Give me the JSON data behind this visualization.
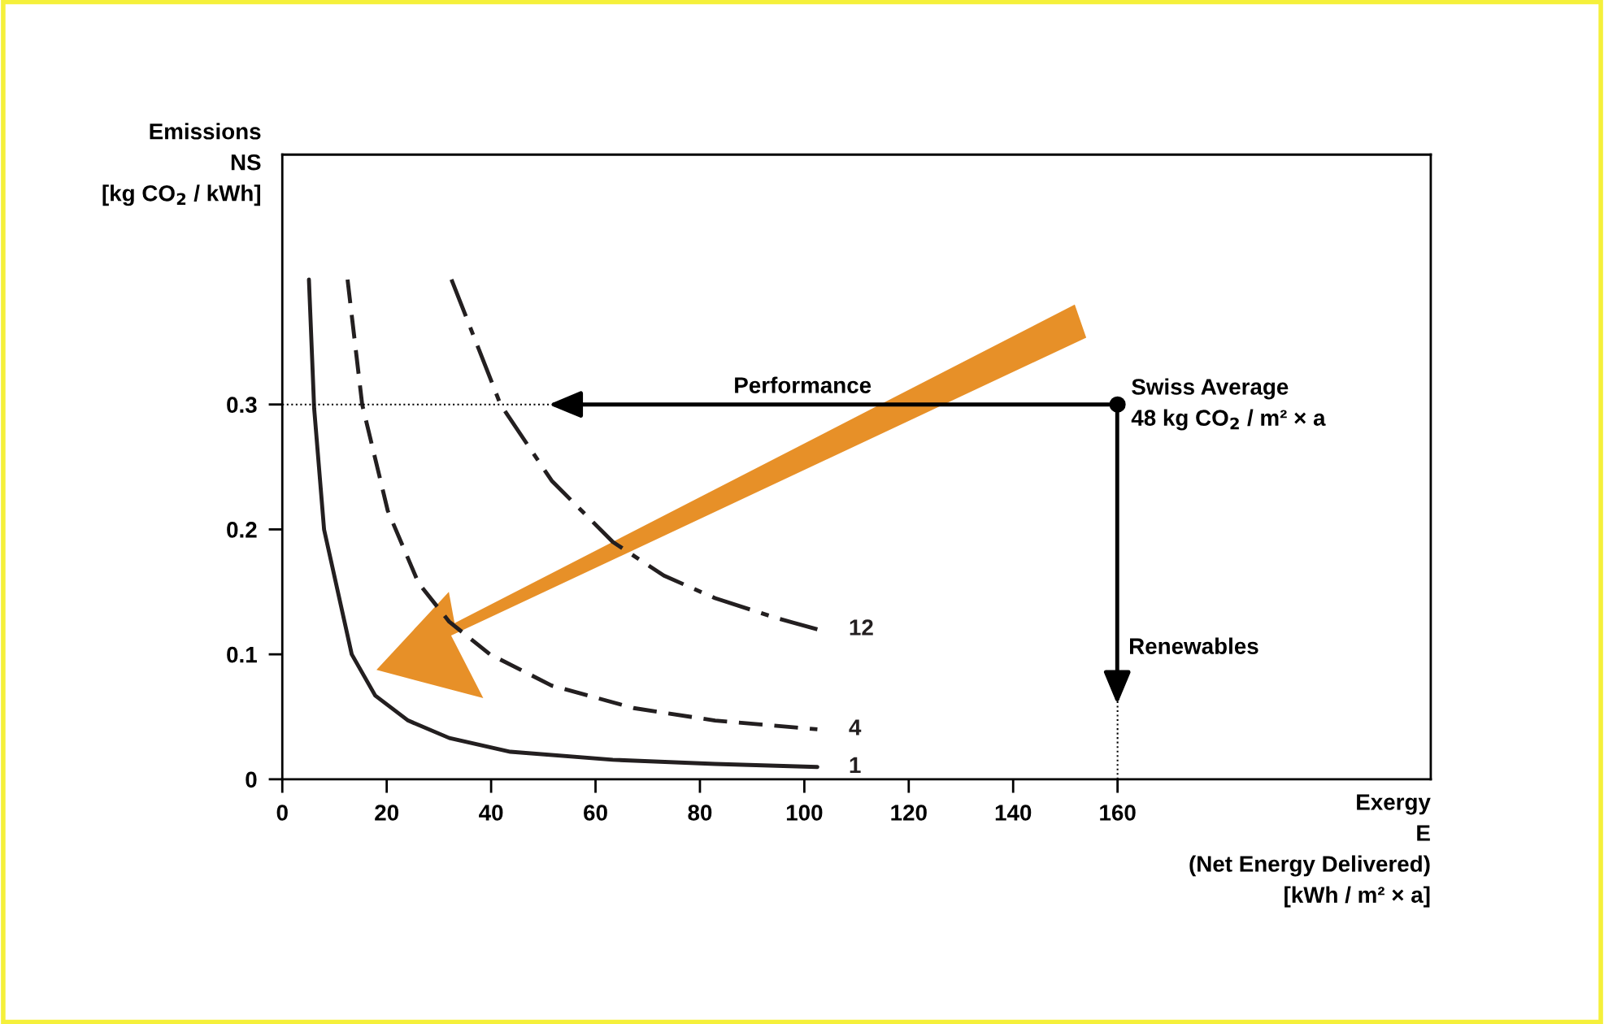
{
  "chart_data": {
    "type": "line",
    "ylabel": "Emissions\nNS\n[kg CO$_{2}$ / kWh]",
    "xlabel": "Exergy\nE\n(Net Energy Delivered)\n[kWh / m² × a]",
    "xlim": [
      0,
      220
    ],
    "ylim": [
      0,
      0.5
    ],
    "xticks": [
      0,
      20,
      40,
      60,
      80,
      100,
      120,
      140,
      160
    ],
    "yticks": [
      0,
      0.1,
      0.2,
      0.3
    ],
    "grid": false,
    "legend": false,
    "series": [
      {
        "name": "1",
        "color": "#231f20",
        "line_style": "solid",
        "x": [
          5.1,
          6.1,
          8.0,
          13.3,
          17.8,
          24.1,
          32,
          43.7,
          63.3,
          82.9,
          102.5
        ],
        "values": [
          0.4,
          0.297,
          0.2,
          0.1,
          0.067,
          0.047,
          0.033,
          0.022,
          0.0156,
          0.0123,
          0.0098
        ]
      },
      {
        "name": "4",
        "color": "#231f20",
        "line_style": "dashed",
        "x": [
          12.5,
          15.3,
          20.2,
          26.1,
          32,
          39.8,
          51.6,
          67.3,
          82.9,
          102.5
        ],
        "values": [
          0.4,
          0.3,
          0.215,
          0.157,
          0.126,
          0.1,
          0.075,
          0.057,
          0.047,
          0.04
        ]
      },
      {
        "name": "12",
        "color": "#231f20",
        "line_style": "dashdot",
        "x": [
          32.4,
          41.8,
          51.6,
          63.3,
          73.1,
          82.9,
          94.7,
          102.5
        ],
        "values": [
          0.4,
          0.3,
          0.239,
          0.19,
          0.163,
          0.145,
          0.129,
          0.12
        ]
      },
      {
        "type": "scatter",
        "color": "#000000",
        "marker": "circle",
        "x": [
          160
        ],
        "values": [
          0.3
        ]
      }
    ],
    "ref_lines": [
      {
        "axis": "y",
        "value": 0.3,
        "line_style": "dotted",
        "color": "#000000"
      },
      {
        "axis": "x",
        "value": 160,
        "line_style": "dotted",
        "color": "#000000"
      }
    ],
    "annotations": [
      {
        "text": "Swiss Average\n48 kg CO$_{2}$ / m² × a",
        "x": 160,
        "y": 0.3
      },
      "Performance",
      "Renewables"
    ]
  }
}
